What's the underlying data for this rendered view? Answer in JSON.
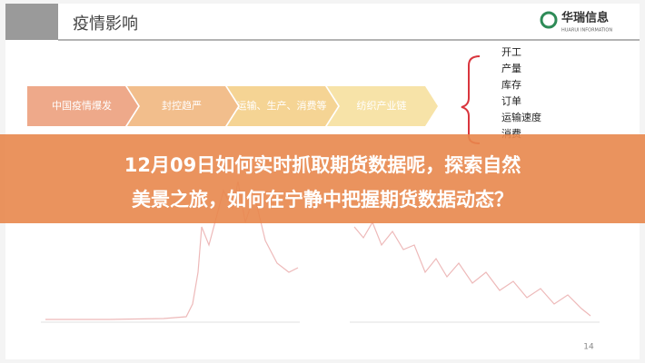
{
  "header": {
    "title": "疫情影响",
    "logo_name": "华瑞信息",
    "logo_sub": "HUARUI INFORMATION"
  },
  "flow": {
    "steps": [
      "中国疫情爆发",
      "封控趋严",
      "运输、生产、消费等",
      "纺织产业链"
    ],
    "impacts": [
      "开工",
      "产量",
      "库存",
      "订单",
      "运输速度",
      "消费"
    ]
  },
  "banner": {
    "lines": [
      "12月09日如何实时抓取期货数据呢，探索自然",
      "美景之旅，如何在宁静中把握期货数据动态？"
    ]
  },
  "footer": {
    "page": "14"
  }
}
